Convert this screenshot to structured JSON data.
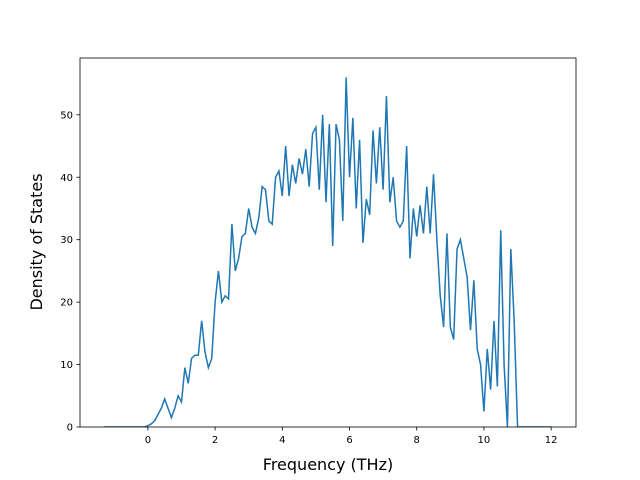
{
  "chart_data": {
    "type": "line",
    "x_label": "Frequency (THz)",
    "y_label": "Density of States",
    "x": [
      -1.3,
      -0.1,
      0.0,
      0.1,
      0.2,
      0.3,
      0.4,
      0.5,
      0.6,
      0.7,
      0.8,
      0.9,
      1.0,
      1.1,
      1.2,
      1.3,
      1.4,
      1.5,
      1.6,
      1.7,
      1.8,
      1.9,
      2.0,
      2.1,
      2.2,
      2.3,
      2.4,
      2.5,
      2.6,
      2.7,
      2.8,
      2.9,
      3.0,
      3.1,
      3.2,
      3.3,
      3.4,
      3.5,
      3.6,
      3.7,
      3.8,
      3.9,
      4.0,
      4.1,
      4.2,
      4.3,
      4.4,
      4.5,
      4.6,
      4.7,
      4.8,
      4.9,
      5.0,
      5.1,
      5.2,
      5.3,
      5.4,
      5.5,
      5.6,
      5.7,
      5.8,
      5.9,
      6.0,
      6.1,
      6.2,
      6.3,
      6.4,
      6.5,
      6.6,
      6.7,
      6.8,
      6.9,
      7.0,
      7.1,
      7.2,
      7.3,
      7.4,
      7.5,
      7.6,
      7.7,
      7.8,
      7.9,
      8.0,
      8.1,
      8.2,
      8.3,
      8.4,
      8.5,
      8.6,
      8.7,
      8.8,
      8.9,
      9.0,
      9.1,
      9.2,
      9.3,
      9.4,
      9.5,
      9.6,
      9.7,
      9.8,
      9.9,
      10.0,
      10.1,
      10.2,
      10.3,
      10.4,
      10.5,
      10.6,
      10.7,
      10.8,
      10.9,
      11.0,
      12.0
    ],
    "series": [
      {
        "color": "#1f77b4",
        "values": [
          0,
          0,
          0.2,
          0.5,
          1,
          2,
          3,
          4.5,
          3,
          1.5,
          3,
          5,
          4,
          9.5,
          7,
          11,
          11.5,
          11.5,
          17,
          12,
          9.5,
          11,
          20,
          25,
          20,
          21,
          20.5,
          32.5,
          25,
          27,
          30.5,
          31,
          35,
          32,
          31,
          33.5,
          38.5,
          38,
          33,
          32.5,
          40,
          41,
          37,
          45,
          37,
          42,
          39,
          43,
          40.5,
          44.5,
          38.5,
          47,
          48,
          38,
          50,
          36,
          48.5,
          29,
          48.5,
          46,
          33,
          56,
          40,
          49.5,
          35,
          46,
          29.5,
          36.5,
          34,
          47.5,
          39,
          48,
          38,
          53,
          36,
          40,
          33,
          32,
          33,
          45,
          27,
          35,
          30.5,
          35.5,
          31,
          38.5,
          31,
          40.5,
          30,
          21,
          16,
          31,
          16,
          14,
          28.5,
          30,
          27,
          24,
          15.5,
          23.5,
          12.5,
          10,
          2.5,
          12.5,
          6,
          17,
          6.5,
          31.5,
          10,
          0,
          28.5,
          17,
          0,
          0
        ]
      }
    ],
    "xlim": [
      -2.02,
      12.74
    ],
    "ylim": [
      0,
      59.1
    ],
    "xticks": [
      0,
      2,
      4,
      6,
      8,
      10,
      12
    ],
    "yticks": [
      0,
      10,
      20,
      30,
      40,
      50
    ]
  }
}
